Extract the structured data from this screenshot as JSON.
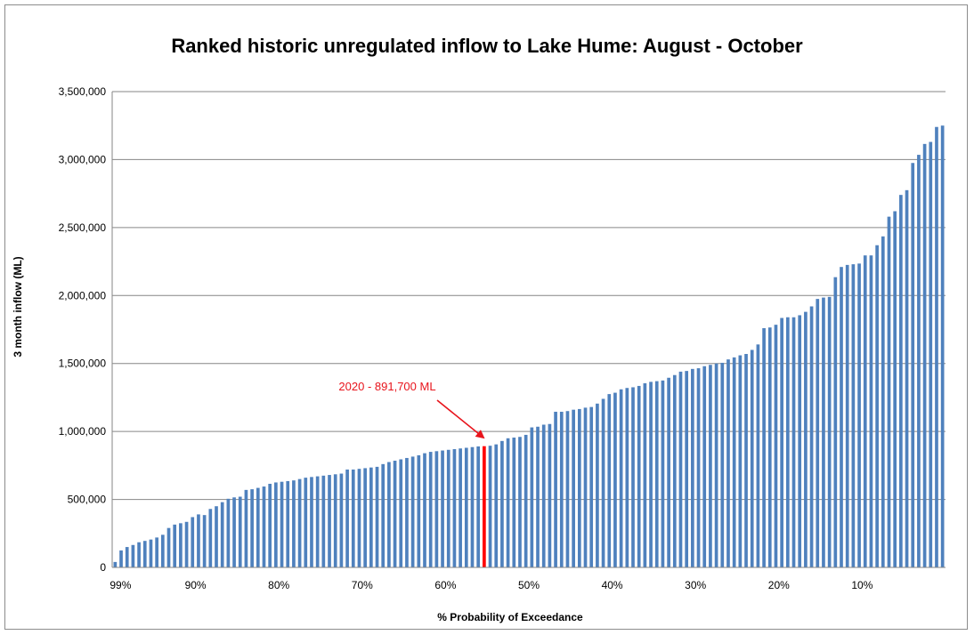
{
  "chart_data": {
    "type": "bar",
    "title": "Ranked historic unregulated inflow to Lake Hume: August - October",
    "xlabel": "% Probability of Exceedance",
    "ylabel": "3 month inflow (ML)",
    "ylim": [
      0,
      3500000
    ],
    "y_ticks": [
      "0",
      "500,000",
      "1,000,000",
      "1,500,000",
      "2,000,000",
      "2,500,000",
      "3,000,000",
      "3,500,000"
    ],
    "x_ticks": [
      {
        "label": "99%",
        "at": 99
      },
      {
        "label": "90%",
        "at": 90
      },
      {
        "label": "80%",
        "at": 80
      },
      {
        "label": "70%",
        "at": 70
      },
      {
        "label": "60%",
        "at": 60
      },
      {
        "label": "50%",
        "at": 50
      },
      {
        "label": "40%",
        "at": 40
      },
      {
        "label": "30%",
        "at": 30
      },
      {
        "label": "20%",
        "at": 20
      },
      {
        "label": "10%",
        "at": 10
      }
    ],
    "grid": true,
    "bar_color": "#4f81bd",
    "highlight_color": "#ff0000",
    "highlight_index": 62,
    "annotation": "2020 - 891,700 ML",
    "values": [
      40000,
      125000,
      150000,
      165000,
      185000,
      195000,
      205000,
      220000,
      240000,
      290000,
      315000,
      325000,
      335000,
      370000,
      390000,
      385000,
      430000,
      450000,
      480000,
      505000,
      515000,
      520000,
      570000,
      575000,
      585000,
      595000,
      615000,
      625000,
      630000,
      635000,
      640000,
      650000,
      660000,
      665000,
      670000,
      675000,
      680000,
      685000,
      690000,
      720000,
      720000,
      725000,
      730000,
      735000,
      740000,
      760000,
      775000,
      785000,
      795000,
      805000,
      815000,
      825000,
      840000,
      850000,
      855000,
      860000,
      865000,
      870000,
      875000,
      880000,
      885000,
      890000,
      891700,
      895000,
      905000,
      930000,
      950000,
      955000,
      960000,
      975000,
      1030000,
      1035000,
      1050000,
      1055000,
      1145000,
      1145000,
      1150000,
      1160000,
      1165000,
      1175000,
      1180000,
      1205000,
      1240000,
      1275000,
      1285000,
      1310000,
      1320000,
      1325000,
      1335000,
      1355000,
      1365000,
      1370000,
      1375000,
      1395000,
      1415000,
      1440000,
      1445000,
      1460000,
      1465000,
      1480000,
      1490000,
      1500000,
      1505000,
      1530000,
      1545000,
      1560000,
      1570000,
      1600000,
      1640000,
      1760000,
      1765000,
      1785000,
      1835000,
      1840000,
      1840000,
      1855000,
      1880000,
      1920000,
      1975000,
      1985000,
      1990000,
      2135000,
      2210000,
      2225000,
      2230000,
      2235000,
      2295000,
      2295000,
      2370000,
      2435000,
      2580000,
      2620000,
      2740000,
      2775000,
      2975000,
      3035000,
      3115000,
      3130000,
      3240000,
      3250000
    ]
  }
}
